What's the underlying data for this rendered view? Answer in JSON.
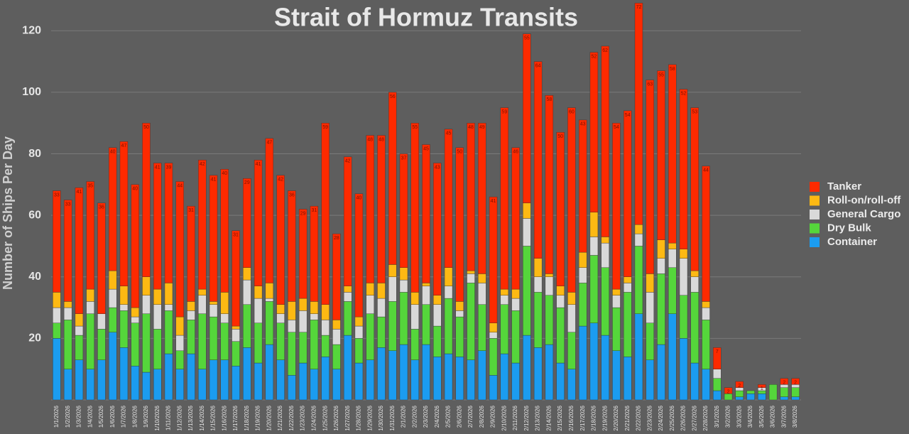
{
  "chart_data": {
    "type": "stacked-bar",
    "title": "Strait of Hormuz Transits",
    "y_label": "Number of Ships Per Day",
    "categories": [
      "1/1/2026",
      "1/2/2026",
      "1/3/2026",
      "1/4/2026",
      "1/5/2026",
      "1/6/2026",
      "1/7/2026",
      "1/8/2026",
      "1/9/2026",
      "1/10/2026",
      "1/11/2026",
      "1/12/2026",
      "1/13/2026",
      "1/14/2026",
      "1/15/2026",
      "1/16/2026",
      "1/17/2026",
      "1/18/2026",
      "1/19/2026",
      "1/20/2026",
      "1/21/2026",
      "1/22/2026",
      "1/23/2026",
      "1/24/2026",
      "1/25/2026",
      "1/26/2026",
      "1/27/2026",
      "1/28/2026",
      "1/29/2026",
      "1/30/2026",
      "1/31/2026",
      "2/1/2026",
      "2/2/2026",
      "2/3/2026",
      "2/4/2026",
      "2/5/2026",
      "2/6/2026",
      "2/7/2026",
      "2/8/2026",
      "2/9/2026",
      "2/10/2026",
      "2/11/2026",
      "2/12/2026",
      "2/13/2026",
      "2/14/2026",
      "2/15/2026",
      "2/16/2026",
      "2/17/2026",
      "2/18/2026",
      "2/19/2026",
      "2/20/2026",
      "2/21/2026",
      "2/22/2026",
      "2/23/2026",
      "2/24/2026",
      "2/25/2026",
      "2/26/2026",
      "2/27/2026",
      "2/28/2026",
      "3/1/2026",
      "3/2/2026",
      "3/3/2026",
      "3/4/2026",
      "3/5/2026",
      "3/6/2026",
      "3/7/2026",
      "3/8/2026"
    ],
    "series": [
      {
        "name": "Container",
        "color": "#1b9cf0",
        "values": [
          20,
          10,
          13,
          10,
          13,
          22,
          17,
          11,
          9,
          10,
          15,
          10,
          15,
          10,
          13,
          13,
          11,
          17,
          12,
          18,
          13,
          8,
          12,
          10,
          14,
          10,
          21,
          12,
          13,
          17,
          16,
          18,
          13,
          18,
          14,
          15,
          14,
          13,
          16,
          8,
          15,
          12,
          21,
          17,
          18,
          12,
          10,
          24,
          25,
          21,
          16,
          14,
          28,
          13,
          18,
          28,
          20,
          12,
          10,
          3,
          0,
          1,
          2,
          2,
          0,
          1,
          1
        ]
      },
      {
        "name": "Dry Bulk",
        "color": "#55d63b",
        "values": [
          5,
          16,
          8,
          18,
          10,
          8,
          12,
          14,
          19,
          13,
          14,
          6,
          11,
          18,
          14,
          12,
          8,
          14,
          13,
          14,
          12,
          14,
          10,
          16,
          7,
          8,
          11,
          8,
          15,
          10,
          16,
          17,
          10,
          13,
          10,
          18,
          13,
          25,
          15,
          12,
          16,
          17,
          29,
          18,
          16,
          18,
          12,
          14,
          22,
          22,
          14,
          21,
          22,
          12,
          23,
          15,
          14,
          23,
          16,
          4,
          2,
          2,
          1,
          1,
          5,
          3,
          3
        ]
      },
      {
        "name": "General Cargo",
        "color": "#d9d9d9",
        "values": [
          5,
          4,
          3,
          4,
          5,
          6,
          2,
          2,
          6,
          8,
          2,
          5,
          3,
          6,
          4,
          3,
          4,
          8,
          8,
          1,
          3,
          4,
          7,
          2,
          5,
          5,
          3,
          4,
          6,
          6,
          8,
          4,
          8,
          6,
          7,
          4,
          2,
          3,
          7,
          2,
          3,
          4,
          9,
          5,
          6,
          4,
          9,
          5,
          6,
          8,
          4,
          3,
          4,
          10,
          5,
          6,
          12,
          5,
          4,
          3,
          0,
          1,
          0,
          1,
          0,
          1,
          1
        ]
      },
      {
        "name": "Roll-on/roll-off",
        "color": "#fdb913",
        "values": [
          5,
          2,
          4,
          4,
          0,
          6,
          6,
          3,
          6,
          5,
          7,
          6,
          3,
          2,
          1,
          7,
          1,
          4,
          4,
          5,
          3,
          6,
          4,
          4,
          5,
          3,
          2,
          3,
          4,
          5,
          4,
          4,
          4,
          1,
          3,
          6,
          3,
          1,
          3,
          3,
          2,
          3,
          5,
          6,
          1,
          3,
          4,
          5,
          8,
          2,
          2,
          2,
          3,
          6,
          6,
          2,
          3,
          2,
          2,
          0,
          0,
          0,
          0,
          0,
          0,
          0,
          0
        ]
      },
      {
        "name": "Tanker",
        "color": "#fe2a00",
        "values": [
          33,
          33,
          41,
          35,
          36,
          40,
          47,
          40,
          50,
          41,
          39,
          44,
          31,
          42,
          41,
          40,
          31,
          29,
          41,
          47,
          42,
          36,
          29,
          31,
          59,
          28,
          42,
          40,
          48,
          48,
          56,
          37,
          55,
          45,
          43,
          45,
          50,
          48,
          49,
          41,
          59,
          46,
          55,
          64,
          58,
          50,
          60,
          43,
          52,
          62,
          54,
          54,
          72,
          63,
          55,
          58,
          52,
          53,
          44,
          7,
          2,
          2,
          0,
          1,
          0,
          2,
          2
        ]
      }
    ],
    "ylim": [
      0,
      130
    ],
    "yticks": [
      20,
      40,
      60,
      80,
      100,
      120
    ],
    "grid": true,
    "legend": "right"
  }
}
